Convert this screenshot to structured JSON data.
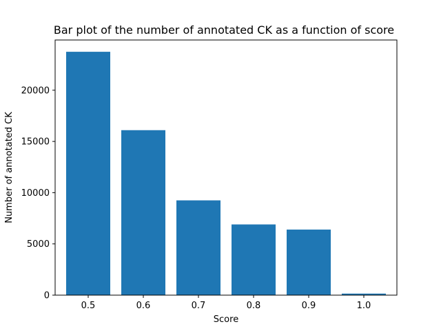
{
  "chart_data": {
    "type": "bar",
    "title": "Bar plot of the number of annotated CK as a function of score",
    "xlabel": "Score",
    "ylabel": "Number of annotated CK",
    "categories": [
      "0.5",
      "0.6",
      "0.7",
      "0.8",
      "0.9",
      "1.0"
    ],
    "values": [
      23750,
      16100,
      9250,
      6900,
      6400,
      150
    ],
    "ylim": [
      0,
      24900
    ],
    "yticks": [
      "0",
      "5000",
      "10000",
      "15000",
      "20000"
    ],
    "grid": false,
    "legend": "none",
    "bar_color": "#1f77b4",
    "axis_color": "#000000"
  }
}
